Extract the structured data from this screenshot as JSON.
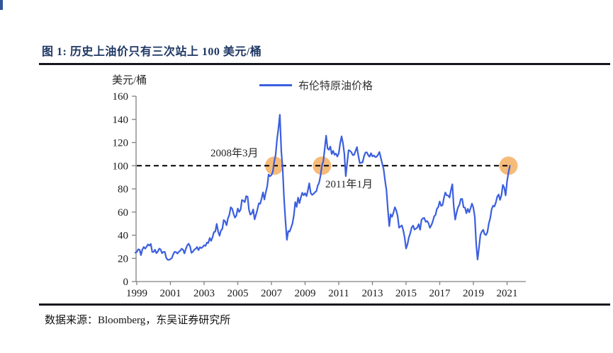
{
  "figure": {
    "title": "图 1:  历史上油价只有三次站上 100 美元/桶",
    "source": "数据来源：Bloomberg，东吴证券研究所"
  },
  "chart_data": {
    "type": "line",
    "unit_label": "美元/桶",
    "legend": [
      {
        "name": "布伦特原油价格",
        "color": "#3B5FDE"
      }
    ],
    "ylim": [
      0,
      160
    ],
    "yticks": [
      0,
      20,
      40,
      60,
      80,
      100,
      120,
      140,
      160
    ],
    "xticks": [
      1999,
      2001,
      2003,
      2005,
      2007,
      2009,
      2011,
      2013,
      2015,
      2017,
      2019,
      2021
    ],
    "grid": false,
    "legend_position": "top",
    "reference_line": {
      "value": 100,
      "style": "dashed",
      "color": "#000000"
    },
    "annotations": [
      {
        "label": "2008年3月",
        "attached_to": "2008-03"
      },
      {
        "label": "2011年1月",
        "attached_to": "2011-01"
      }
    ],
    "highlights": {
      "color": "#F5B266",
      "value": 100,
      "dates": [
        "2008-03",
        "2011-01",
        "2022-02"
      ]
    },
    "series": [
      {
        "name": "布伦特原油价格",
        "color": "#3B5FDE",
        "start": "1999-12",
        "frequency": "monthly",
        "values": [
          25.0,
          25.5,
          27.8,
          27.5,
          22.8,
          27.7,
          29.8,
          28.4,
          30.1,
          32.1,
          31.0,
          32.5,
          25.5,
          25.6,
          27.5,
          24.5,
          25.9,
          28.4,
          27.8,
          24.5,
          25.6,
          25.6,
          20.4,
          18.9,
          18.7,
          19.4,
          20.3,
          23.7,
          25.7,
          25.4,
          24.1,
          25.8,
          26.6,
          28.4,
          27.5,
          24.3,
          28.3,
          31.3,
          32.7,
          30.3,
          24.8,
          25.8,
          27.5,
          28.3,
          29.8,
          27.1,
          29.6,
          28.9,
          29.8,
          31.3,
          30.8,
          33.6,
          33.3,
          37.6,
          35.1,
          38.2,
          42.7,
          43.2,
          49.8,
          43.1,
          39.6,
          44.2,
          45.4,
          53.1,
          51.9,
          48.6,
          54.4,
          57.5,
          64.1,
          62.9,
          58.5,
          55.2,
          56.9,
          63.0,
          60.1,
          62.1,
          70.4,
          69.8,
          68.6,
          73.7,
          73.2,
          62.0,
          57.8,
          58.9,
          62.3,
          53.7,
          57.6,
          62.1,
          67.5,
          67.2,
          71.6,
          77.0,
          70.8,
          77.2,
          82.3,
          92.4,
          90.9,
          92.0,
          94.8,
          103.6,
          109.1,
          122.7,
          132.3,
          144.0,
          113.0,
          98.1,
          71.9,
          52.5,
          36.0,
          43.6,
          43.1,
          46.5,
          50.2,
          57.3,
          68.6,
          64.4,
          72.5,
          67.7,
          72.8,
          76.7,
          74.5,
          76.2,
          73.7,
          78.8,
          84.8,
          76.6,
          74.8,
          75.6,
          77.1,
          77.8,
          82.7,
          85.3,
          91.4,
          100.3,
          103.7,
          114.6,
          126.0,
          115.0,
          113.8,
          116.5,
          110.1,
          112.8,
          109.5,
          110.5,
          107.9,
          110.7,
          119.3,
          125.4,
          119.7,
          110.3,
          91.0,
          102.6,
          113.4,
          112.9,
          111.7,
          109.1,
          109.5,
          112.9,
          116.1,
          108.5,
          102.2,
          102.6,
          102.9,
          107.9,
          111.3,
          111.6,
          109.1,
          107.8,
          110.8,
          108.1,
          108.8,
          107.5,
          107.7,
          109.5,
          111.8,
          106.8,
          101.6,
          97.1,
          87.4,
          79.0,
          62.3,
          47.8,
          58.1,
          55.9,
          59.5,
          64.1,
          61.5,
          56.6,
          46.5,
          47.6,
          48.4,
          44.3,
          38.0,
          28.5,
          32.2,
          38.2,
          41.6,
          46.7,
          48.3,
          44.9,
          45.7,
          46.6,
          49.5,
          44.7,
          53.3,
          54.6,
          54.9,
          51.6,
          52.3,
          50.3,
          46.4,
          48.5,
          51.7,
          56.2,
          57.5,
          62.7,
          64.4,
          69.1,
          65.3,
          66.0,
          72.1,
          76.9,
          74.4,
          74.3,
          72.5,
          78.9,
          84.0,
          64.8,
          53.5,
          59.4,
          63.9,
          66.1,
          71.2,
          71.3,
          64.2,
          63.9,
          59.0,
          62.8,
          59.7,
          63.2,
          67.3,
          63.7,
          55.7,
          32.0,
          19.0,
          29.4,
          40.3,
          43.2,
          44.7,
          40.9,
          40.2,
          42.7,
          50.2,
          54.8,
          62.3,
          65.4,
          64.8,
          68.3,
          73.2,
          75.2,
          70.5,
          74.6,
          83.5,
          81.1,
          74.3,
          86.5,
          94.1,
          100.0
        ]
      }
    ]
  }
}
